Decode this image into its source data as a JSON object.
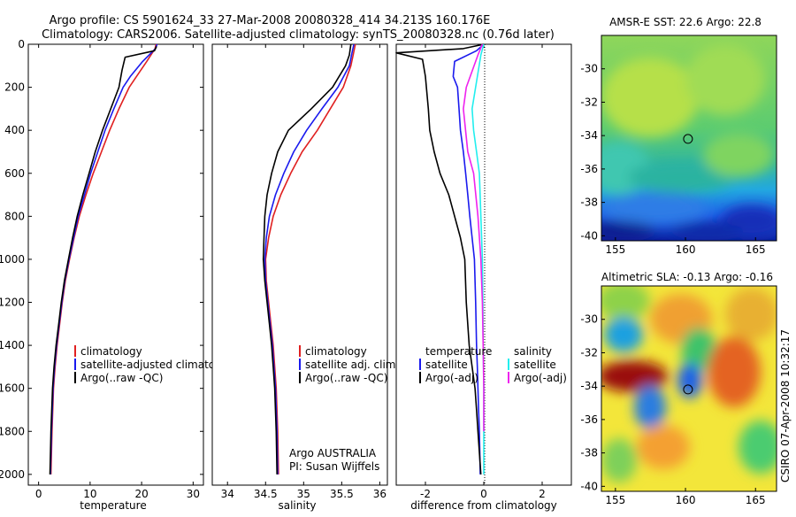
{
  "header": {
    "title_line1": "Argo profile: CS 5901624_33 27-Mar-2008 20080328_414 34.213S 160.176E",
    "title_line2": "Climatology: CARS2006. Satellite-adjusted climatology: synTS_20080328.nc (0.76d later)"
  },
  "credit": {
    "org": "Argo AUSTRALIA",
    "pi": "PI: Susan Wijffels",
    "stamp": "CSIRO 07-Apr-2008 10:32:17"
  },
  "colors": {
    "climatology": "#e02020",
    "satellite": "#1a1aee",
    "argo": "#000000",
    "salinity_sat": "#22eeee",
    "salinity_argo": "#ee22ee"
  },
  "chart_data": [
    {
      "id": "temperature",
      "type": "line",
      "xlabel": "temperature",
      "ylabel": "",
      "xlim": [
        -2,
        32
      ],
      "ylim": [
        2050,
        0
      ],
      "xticks": [
        0,
        10,
        20,
        30
      ],
      "yticks": [
        0,
        200,
        400,
        600,
        800,
        1000,
        1200,
        1400,
        1600,
        1800,
        2000
      ],
      "legend": {
        "placement": "lower-right",
        "entries": [
          "climatology",
          "satellite-adjusted climatology",
          "Argo(..raw -QC)"
        ]
      },
      "series": [
        {
          "name": "climatology",
          "color": "#e02020",
          "x": [
            22.8,
            22.6,
            21.0,
            19.0,
            17.6,
            15.6,
            13.8,
            12.2,
            10.6,
            9.2,
            7.9,
            6.9,
            6.0,
            5.2,
            4.6,
            4.1,
            3.6,
            3.2,
            2.9,
            2.6,
            2.4
          ],
          "y": [
            0,
            20,
            80,
            150,
            200,
            300,
            400,
            500,
            600,
            700,
            800,
            900,
            1000,
            1100,
            1200,
            1300,
            1400,
            1500,
            1600,
            1800,
            2000
          ]
        },
        {
          "name": "satellite-adjusted climatology",
          "color": "#1a1aee",
          "x": [
            23.0,
            22.7,
            20.2,
            17.8,
            16.4,
            14.6,
            12.9,
            11.5,
            10.1,
            8.9,
            7.7,
            6.8,
            5.9,
            5.1,
            4.5,
            4.0,
            3.5,
            3.1,
            2.8,
            2.5,
            2.3
          ],
          "y": [
            0,
            20,
            80,
            150,
            200,
            300,
            400,
            500,
            600,
            700,
            800,
            900,
            1000,
            1100,
            1200,
            1300,
            1400,
            1500,
            1600,
            1800,
            2000
          ]
        },
        {
          "name": "Argo(..raw -QC)",
          "color": "#000000",
          "x": [
            22.9,
            22.5,
            16.8,
            16.2,
            15.6,
            14.0,
            12.4,
            11.0,
            9.8,
            8.6,
            7.5,
            6.6,
            5.8,
            5.0,
            4.4,
            3.9,
            3.4,
            3.0,
            2.7,
            2.4,
            2.2
          ],
          "y": [
            10,
            30,
            60,
            120,
            200,
            300,
            400,
            500,
            600,
            700,
            800,
            900,
            1000,
            1100,
            1200,
            1300,
            1400,
            1500,
            1600,
            1800,
            2000
          ]
        }
      ]
    },
    {
      "id": "salinity",
      "type": "line",
      "xlabel": "salinity",
      "ylabel": "",
      "xlim": [
        33.8,
        36.1
      ],
      "ylim": [
        2050,
        0
      ],
      "xticks": [
        34,
        34.5,
        35,
        35.5,
        36
      ],
      "yticks": [],
      "legend": {
        "placement": "lower-right",
        "entries": [
          "climatology",
          "satellite adj. clim.",
          "Argo(..raw -QC)"
        ]
      },
      "series": [
        {
          "name": "climatology",
          "color": "#e02020",
          "x": [
            35.68,
            35.65,
            35.62,
            35.52,
            35.35,
            35.18,
            34.98,
            34.83,
            34.7,
            34.6,
            34.54,
            34.5,
            34.51,
            34.54,
            34.57,
            34.6,
            34.62,
            34.64,
            34.66,
            34.67
          ],
          "y": [
            0,
            50,
            100,
            200,
            300,
            400,
            500,
            600,
            700,
            800,
            900,
            1000,
            1100,
            1200,
            1300,
            1400,
            1500,
            1600,
            1800,
            2000
          ]
        },
        {
          "name": "satellite adj. clim.",
          "color": "#1a1aee",
          "x": [
            35.66,
            35.63,
            35.6,
            35.45,
            35.24,
            35.04,
            34.87,
            34.74,
            34.63,
            34.55,
            34.51,
            34.49,
            34.5,
            34.53,
            34.56,
            34.59,
            34.61,
            34.63,
            34.65,
            34.66
          ],
          "y": [
            0,
            50,
            100,
            200,
            300,
            400,
            500,
            600,
            700,
            800,
            900,
            1000,
            1100,
            1200,
            1300,
            1400,
            1500,
            1600,
            1800,
            2000
          ]
        },
        {
          "name": "Argo(..raw -QC)",
          "color": "#000000",
          "x": [
            35.62,
            35.6,
            35.55,
            35.38,
            35.1,
            34.8,
            34.66,
            34.58,
            34.52,
            34.49,
            34.48,
            34.47,
            34.49,
            34.52,
            34.55,
            34.58,
            34.6,
            34.62,
            34.64,
            34.65
          ],
          "y": [
            0,
            50,
            100,
            200,
            300,
            400,
            500,
            600,
            700,
            800,
            900,
            1000,
            1100,
            1200,
            1300,
            1400,
            1500,
            1600,
            1800,
            2000
          ]
        }
      ]
    },
    {
      "id": "difference",
      "type": "line",
      "xlabel": "difference from climatology",
      "ylabel": "",
      "xlim": [
        -3.0,
        3.0
      ],
      "ylim": [
        2050,
        0
      ],
      "xticks": [
        -2,
        0,
        2
      ],
      "yticks": [],
      "legend": {
        "placement": "lower-right",
        "groups": [
          "temperature",
          "salinity"
        ],
        "entries": [
          "satellite",
          "Argo(-adj)",
          "satellite",
          "Argo(-adj)"
        ]
      },
      "series": [
        {
          "name": "satellite",
          "group": "temperature",
          "color": "#1a1aee",
          "x": [
            0.0,
            -0.25,
            -1.0,
            -1.05,
            -0.9,
            -0.85,
            -0.8,
            -0.7,
            -0.62,
            -0.55,
            -0.48,
            -0.4,
            -0.32,
            -0.28,
            -0.25,
            -0.22,
            -0.2,
            -0.18,
            -0.15,
            -0.12
          ],
          "y": [
            0,
            30,
            80,
            150,
            200,
            300,
            400,
            500,
            600,
            700,
            800,
            900,
            1000,
            1200,
            1400,
            1500,
            1600,
            1700,
            1800,
            2000
          ]
        },
        {
          "name": "Argo(-adj)",
          "group": "temperature",
          "color": "#000000",
          "x": [
            0.0,
            -0.7,
            -3.0,
            -2.1,
            -2.0,
            -1.9,
            -1.85,
            -1.7,
            -1.5,
            -1.2,
            -1.0,
            -0.8,
            -0.65,
            -0.6,
            -0.5,
            -0.4,
            -0.3,
            -0.25,
            -0.2,
            -0.1
          ],
          "y": [
            0,
            20,
            40,
            70,
            150,
            300,
            400,
            500,
            600,
            700,
            800,
            900,
            1000,
            1200,
            1400,
            1500,
            1600,
            1700,
            1800,
            2000
          ]
        },
        {
          "name": "satellite",
          "group": "salinity",
          "color": "#22eeee",
          "x": [
            0.0,
            -0.1,
            -0.4,
            -0.35,
            -0.25,
            -0.15,
            -0.1,
            -0.05,
            -0.03,
            -0.02,
            0.0,
            0.0,
            0.0
          ],
          "y": [
            0,
            50,
            300,
            400,
            500,
            600,
            800,
            1000,
            1200,
            1400,
            1600,
            1800,
            2000
          ]
        },
        {
          "name": "Argo(-adj)",
          "group": "salinity",
          "color": "#ee22ee",
          "x": [
            -0.05,
            -0.2,
            -0.6,
            -0.7,
            -0.55,
            -0.35,
            -0.2,
            -0.1,
            -0.05,
            -0.02,
            0.0,
            0.0
          ],
          "y": [
            0,
            50,
            200,
            300,
            500,
            600,
            800,
            1000,
            1200,
            1400,
            1600,
            1800
          ]
        }
      ]
    },
    {
      "id": "sst-map",
      "type": "heatmap",
      "title": "AMSR-E SST: 22.6  Argo: 22.8",
      "xlim": [
        154,
        166.5
      ],
      "ylim": [
        -40.3,
        -28
      ],
      "xticks": [
        155,
        160,
        165
      ],
      "yticks": [
        -30,
        -32,
        -34,
        -36,
        -38,
        -40
      ],
      "marker": {
        "lon": 160.18,
        "lat": -34.2
      }
    },
    {
      "id": "sla-map",
      "type": "heatmap",
      "title": "Altimetric SLA: -0.13  Argo: -0.16",
      "xlim": [
        154,
        166.5
      ],
      "ylim": [
        -40.3,
        -28
      ],
      "xticks": [
        155,
        160,
        165
      ],
      "yticks": [
        -30,
        -32,
        -34,
        -36,
        -38,
        -40
      ],
      "marker": {
        "lon": 160.18,
        "lat": -34.2
      }
    }
  ]
}
